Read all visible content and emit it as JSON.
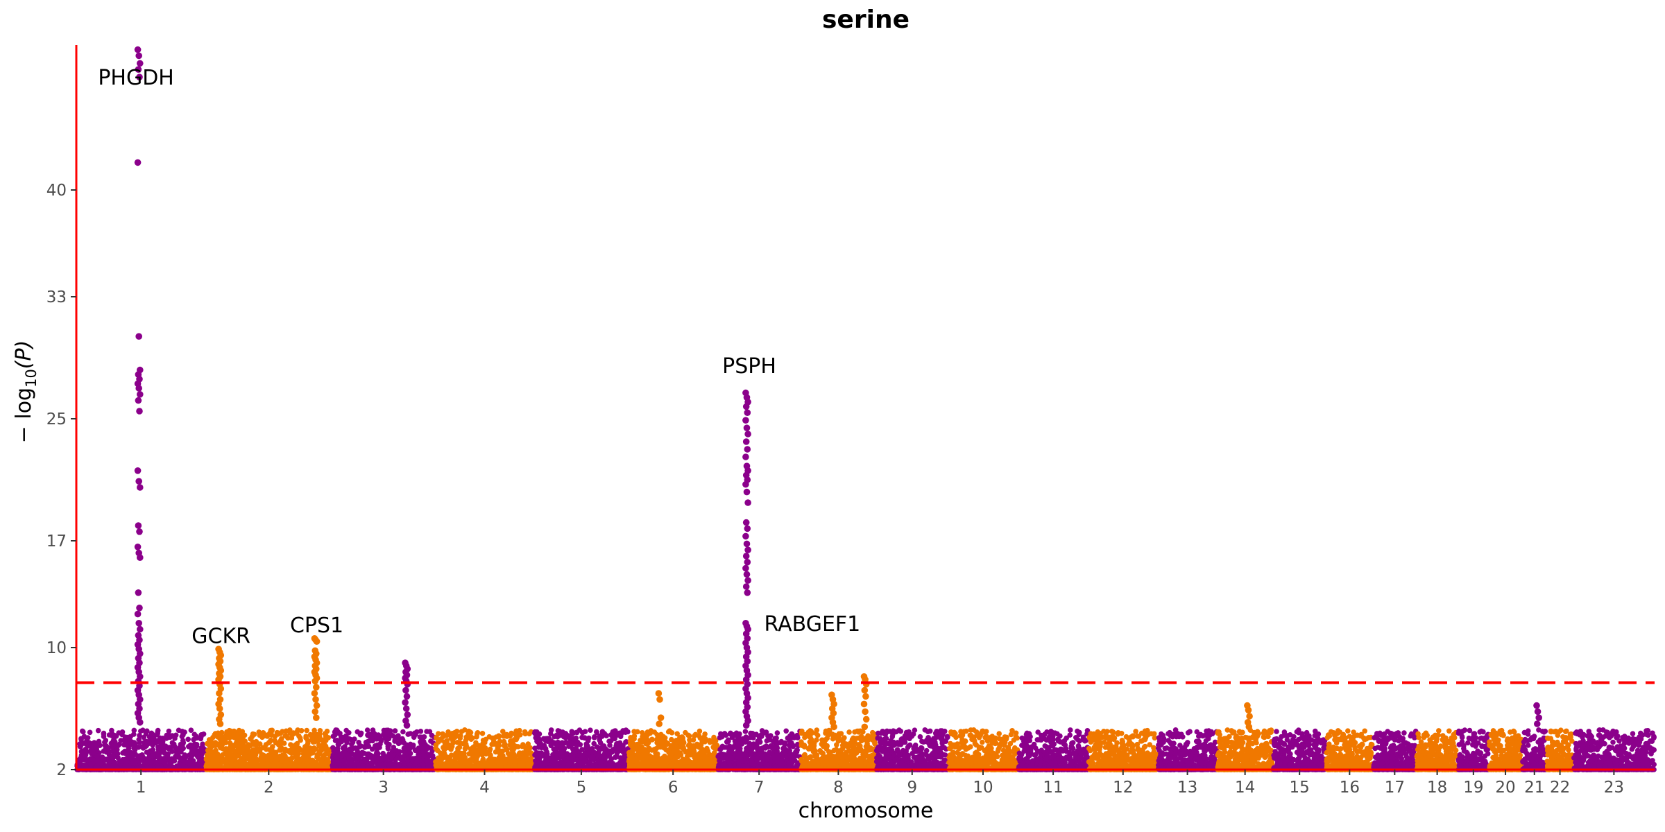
{
  "chart_data": {
    "type": "scatter",
    "title": "serine",
    "xlabel": "chromosome",
    "ylabel": {
      "prefix": "− log",
      "subscript": "10",
      "suffix": "(P)"
    },
    "ylim": [
      2,
      49.5
    ],
    "y_ticks": [
      2,
      10,
      17,
      25,
      33,
      40
    ],
    "threshold": 7.7,
    "threshold_color": "#ff0000",
    "axis_color": "#ff0000",
    "colors": {
      "odd": "#8b008b",
      "even": "#f07800"
    },
    "chromosomes": [
      {
        "label": "1",
        "length": 248
      },
      {
        "label": "2",
        "length": 242
      },
      {
        "label": "3",
        "length": 198
      },
      {
        "label": "4",
        "length": 190
      },
      {
        "label": "5",
        "length": 181
      },
      {
        "label": "6",
        "length": 171
      },
      {
        "label": "7",
        "length": 159
      },
      {
        "label": "8",
        "length": 145
      },
      {
        "label": "9",
        "length": 138
      },
      {
        "label": "10",
        "length": 134
      },
      {
        "label": "11",
        "length": 135
      },
      {
        "label": "12",
        "length": 133
      },
      {
        "label": "13",
        "length": 114
      },
      {
        "label": "14",
        "length": 107
      },
      {
        "label": "15",
        "length": 102
      },
      {
        "label": "16",
        "length": 90
      },
      {
        "label": "17",
        "length": 83
      },
      {
        "label": "18",
        "length": 80
      },
      {
        "label": "19",
        "length": 59
      },
      {
        "label": "20",
        "length": 64
      },
      {
        "label": "21",
        "length": 47
      },
      {
        "label": "22",
        "length": 51
      },
      {
        "label": "23",
        "length": 156
      }
    ],
    "peaks": [
      {
        "chromosome": "1",
        "position": 120,
        "points": [
          49.2,
          48.8,
          48.3,
          47.9,
          47.4,
          41.8,
          30.4,
          28.2,
          27.9,
          27.6,
          27.3,
          27.0,
          26.6,
          26.2,
          25.5,
          21.6,
          20.9,
          20.5,
          18.0,
          17.6,
          16.6,
          16.2,
          15.9,
          13.6,
          12.6,
          12.2,
          11.6,
          11.2,
          10.8,
          10.5,
          10.2,
          9.9,
          9.6,
          9.3,
          9.0,
          8.7,
          8.4,
          8.1,
          7.8,
          7.5,
          7.2,
          6.9,
          6.6,
          6.3,
          6.0,
          5.7,
          5.4,
          5.1
        ]
      },
      {
        "chromosome": "2",
        "position": 27,
        "points": [
          9.9,
          9.7,
          9.5,
          9.3,
          9.1,
          8.9,
          8.7,
          8.5,
          8.3,
          8.1,
          7.9,
          7.6,
          7.3,
          7.0,
          6.6,
          6.3,
          6.0,
          5.6,
          5.3,
          5.0
        ]
      },
      {
        "chromosome": "2",
        "position": 211,
        "points": [
          10.6,
          10.5,
          10.4,
          9.8,
          9.6,
          9.4,
          9.2,
          9.0,
          8.8,
          8.6,
          8.4,
          8.2,
          8.0,
          7.8,
          7.4,
          7.0,
          6.6,
          6.2,
          5.8,
          5.4
        ]
      },
      {
        "chromosome": "3",
        "position": 143,
        "points": [
          9.0,
          8.8,
          8.6,
          8.4,
          8.2,
          8.0,
          7.8,
          7.6,
          7.2,
          6.8,
          6.4,
          6.0,
          5.6,
          5.2,
          4.9
        ]
      },
      {
        "chromosome": "7",
        "position": 56,
        "points": [
          26.7,
          26.4,
          26.1,
          25.8,
          25.4,
          24.9,
          24.4,
          24.0,
          23.5,
          23.0,
          22.5,
          21.9,
          21.6,
          21.3,
          21.0,
          20.7,
          20.2,
          19.5,
          18.2,
          17.8,
          17.3,
          16.8,
          16.4,
          16.0,
          15.6,
          15.2,
          14.8,
          14.4,
          14.0,
          13.6,
          11.6,
          11.4,
          11.2,
          10.9,
          10.6,
          10.3,
          10.0,
          9.7,
          9.4,
          9.1,
          8.8,
          8.5,
          8.2,
          7.9,
          7.6,
          7.3,
          7.0,
          6.7,
          6.4,
          6.1,
          5.8,
          5.5,
          5.2,
          4.9
        ]
      },
      {
        "chromosome": "8",
        "position": 62,
        "points": [
          6.9,
          6.6,
          6.3,
          6.0,
          5.7,
          5.4,
          5.1,
          4.8
        ]
      },
      {
        "chromosome": "8",
        "position": 124,
        "points": [
          8.1,
          7.9,
          7.6,
          7.2,
          6.8,
          6.3,
          5.8,
          5.3,
          4.8
        ]
      },
      {
        "chromosome": "6",
        "position": 60,
        "points": [
          7.0,
          6.6,
          5.4,
          5.0
        ]
      },
      {
        "chromosome": "14",
        "position": 60,
        "points": [
          6.2,
          5.9,
          5.5,
          5.1,
          4.8
        ]
      },
      {
        "chromosome": "21",
        "position": 30,
        "points": [
          6.2,
          5.8,
          5.4,
          5.0
        ]
      }
    ],
    "annotations": [
      {
        "text": "PHGDH",
        "x": 128,
        "y": 46.9,
        "anchor": "middle"
      },
      {
        "text": "GCKR",
        "x": 208,
        "y": 10.3,
        "anchor": "middle"
      },
      {
        "text": "CPS1",
        "x": 298,
        "y": 11.0,
        "anchor": "middle"
      },
      {
        "text": "PSPH",
        "x": 705,
        "y": 28.0,
        "anchor": "middle"
      },
      {
        "text": "RABGEF1",
        "x": 719,
        "y": 11.1,
        "anchor": "start"
      }
    ]
  }
}
